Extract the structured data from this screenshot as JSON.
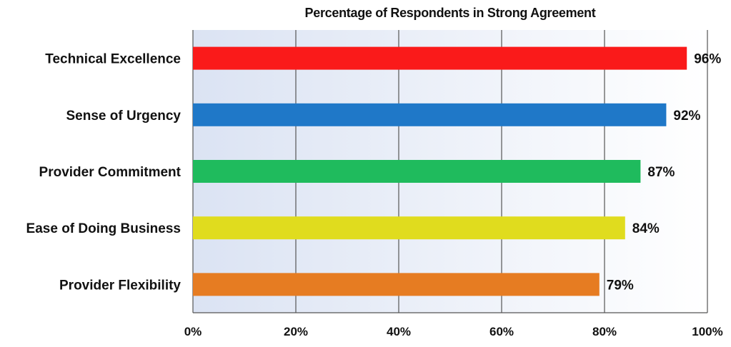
{
  "chart_data": {
    "type": "bar",
    "orientation": "horizontal",
    "title": "Percentage of Respondents in Strong Agreement",
    "xlabel": "",
    "ylabel": "",
    "categories": [
      "Technical Excellence",
      "Sense of Urgency",
      "Provider Commitment",
      "Ease of Doing Business",
      "Provider Flexibility"
    ],
    "values": [
      96,
      92,
      87,
      84,
      79
    ],
    "value_labels": [
      "96%",
      "92%",
      "87%",
      "84%",
      "79%"
    ],
    "bar_colors": [
      "#fa1a1a",
      "#1f78c8",
      "#1fbb5d",
      "#e0dc1e",
      "#e67c22"
    ],
    "xlim": [
      0,
      100
    ],
    "xticks": [
      0,
      20,
      40,
      60,
      80,
      100
    ],
    "xtick_labels": [
      "0%",
      "20%",
      "40%",
      "60%",
      "80%",
      "100%"
    ],
    "grid": true,
    "legend": "none",
    "plot_background": "gradient #dbe3f3 to #ffffff"
  }
}
